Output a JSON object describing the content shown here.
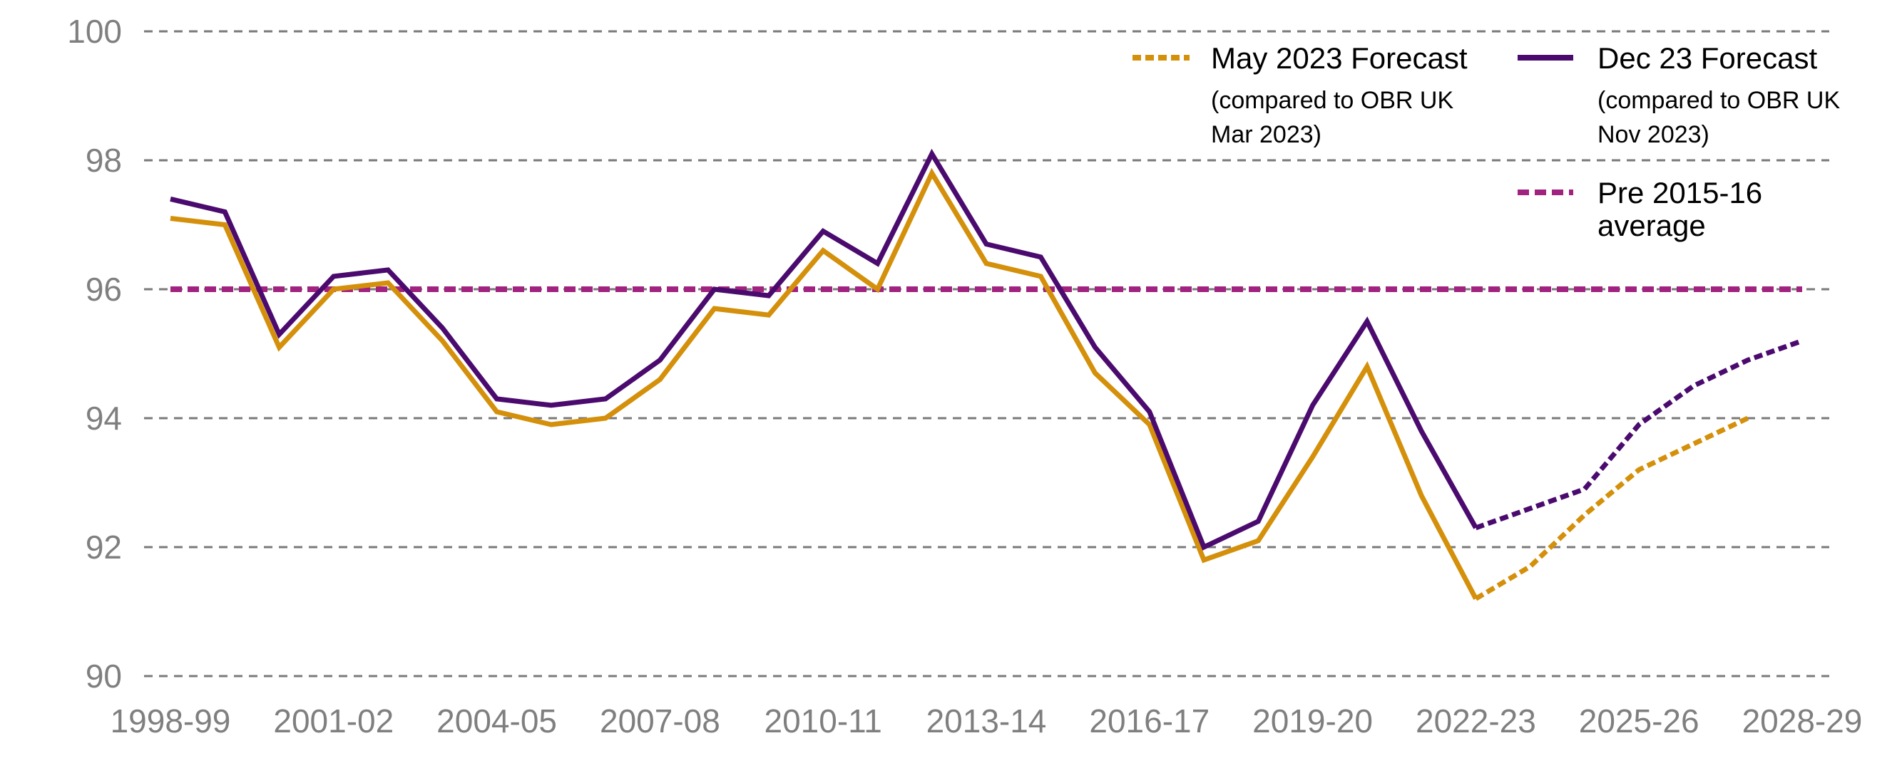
{
  "chart_data": {
    "type": "line",
    "title": "",
    "xlabel": "",
    "ylabel": "",
    "ylim": [
      90,
      100
    ],
    "yticks": [
      90,
      92,
      94,
      96,
      98,
      100
    ],
    "grid": "horizontal dashed",
    "legend_placement": "top-right",
    "x": [
      "1998-99",
      "1999-00",
      "2000-01",
      "2001-02",
      "2002-03",
      "2003-04",
      "2004-05",
      "2005-06",
      "2006-07",
      "2007-08",
      "2008-09",
      "2009-10",
      "2010-11",
      "2011-12",
      "2012-13",
      "2013-14",
      "2014-15",
      "2015-16",
      "2016-17",
      "2017-18",
      "2018-19",
      "2019-20",
      "2020-21",
      "2021-22",
      "2022-23",
      "2023-24",
      "2024-25",
      "2025-26",
      "2026-27",
      "2027-28",
      "2028-29"
    ],
    "xtick_labels": [
      "1998-99",
      "2001-02",
      "2004-05",
      "2007-08",
      "2010-11",
      "2013-14",
      "2016-17",
      "2019-20",
      "2022-23",
      "2025-26",
      "2028-29"
    ],
    "series": [
      {
        "name": "May 2023 Forecast",
        "name_sub": [
          "(compared to OBR UK",
          "Mar 2023)"
        ],
        "color": "#d4900a",
        "forecast_from": "2022-23",
        "values": [
          97.1,
          97.0,
          95.1,
          96.0,
          96.1,
          95.2,
          94.1,
          93.9,
          94.0,
          94.6,
          95.7,
          95.6,
          96.6,
          96.0,
          97.8,
          96.4,
          96.2,
          94.7,
          93.9,
          91.8,
          92.1,
          93.4,
          94.8,
          92.8,
          91.2,
          91.7,
          92.5,
          93.2,
          93.6,
          94.0,
          null
        ]
      },
      {
        "name": "Dec 23 Forecast",
        "name_sub": [
          "(compared to OBR UK",
          "Nov 2023)"
        ],
        "color": "#4b0b6e",
        "forecast_from": "2022-23",
        "values": [
          97.4,
          97.2,
          95.3,
          96.2,
          96.3,
          95.4,
          94.3,
          94.2,
          94.3,
          94.9,
          96.0,
          95.9,
          96.9,
          96.4,
          98.1,
          96.7,
          96.5,
          95.1,
          94.1,
          92.0,
          92.4,
          94.2,
          95.5,
          93.8,
          92.3,
          92.6,
          92.9,
          93.9,
          94.5,
          94.9,
          95.2
        ]
      },
      {
        "name": "Pre 2015-16",
        "name_sub": [
          "average"
        ],
        "color": "#a0237f",
        "style": "dashed",
        "values": [
          96,
          96,
          96,
          96,
          96,
          96,
          96,
          96,
          96,
          96,
          96,
          96,
          96,
          96,
          96,
          96,
          96,
          96,
          96,
          96,
          96,
          96,
          96,
          96,
          96,
          96,
          96,
          96,
          96,
          96,
          96
        ]
      }
    ]
  }
}
